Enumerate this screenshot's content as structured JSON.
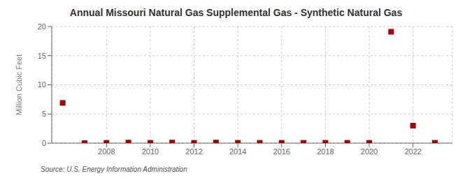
{
  "chart_data": {
    "type": "scatter",
    "title": "Annual Missouri Natural Gas Supplemental Gas - Synthetic Natural Gas",
    "ylabel": "Million Cubic Feet",
    "source": "Source: U.S. Energy Information Administration",
    "x": [
      2006,
      2007,
      2008,
      2009,
      2010,
      2011,
      2012,
      2013,
      2014,
      2015,
      2016,
      2017,
      2018,
      2019,
      2020,
      2021,
      2022,
      2023
    ],
    "values": [
      6.9,
      0.0,
      0.05,
      0.1,
      0.05,
      0.1,
      0.05,
      0.1,
      0.05,
      0.05,
      0.05,
      0.05,
      0.05,
      0.05,
      0.05,
      19.1,
      3.0,
      0.05
    ],
    "color": "#aa0000",
    "marker": "square",
    "xlim": [
      2005.5,
      2023.8
    ],
    "xticks": [
      2008,
      2010,
      2012,
      2014,
      2016,
      2018,
      2020,
      2022
    ],
    "ylim": [
      0,
      20
    ],
    "yticks": [
      0,
      5,
      10,
      15,
      20
    ],
    "grid": true
  }
}
